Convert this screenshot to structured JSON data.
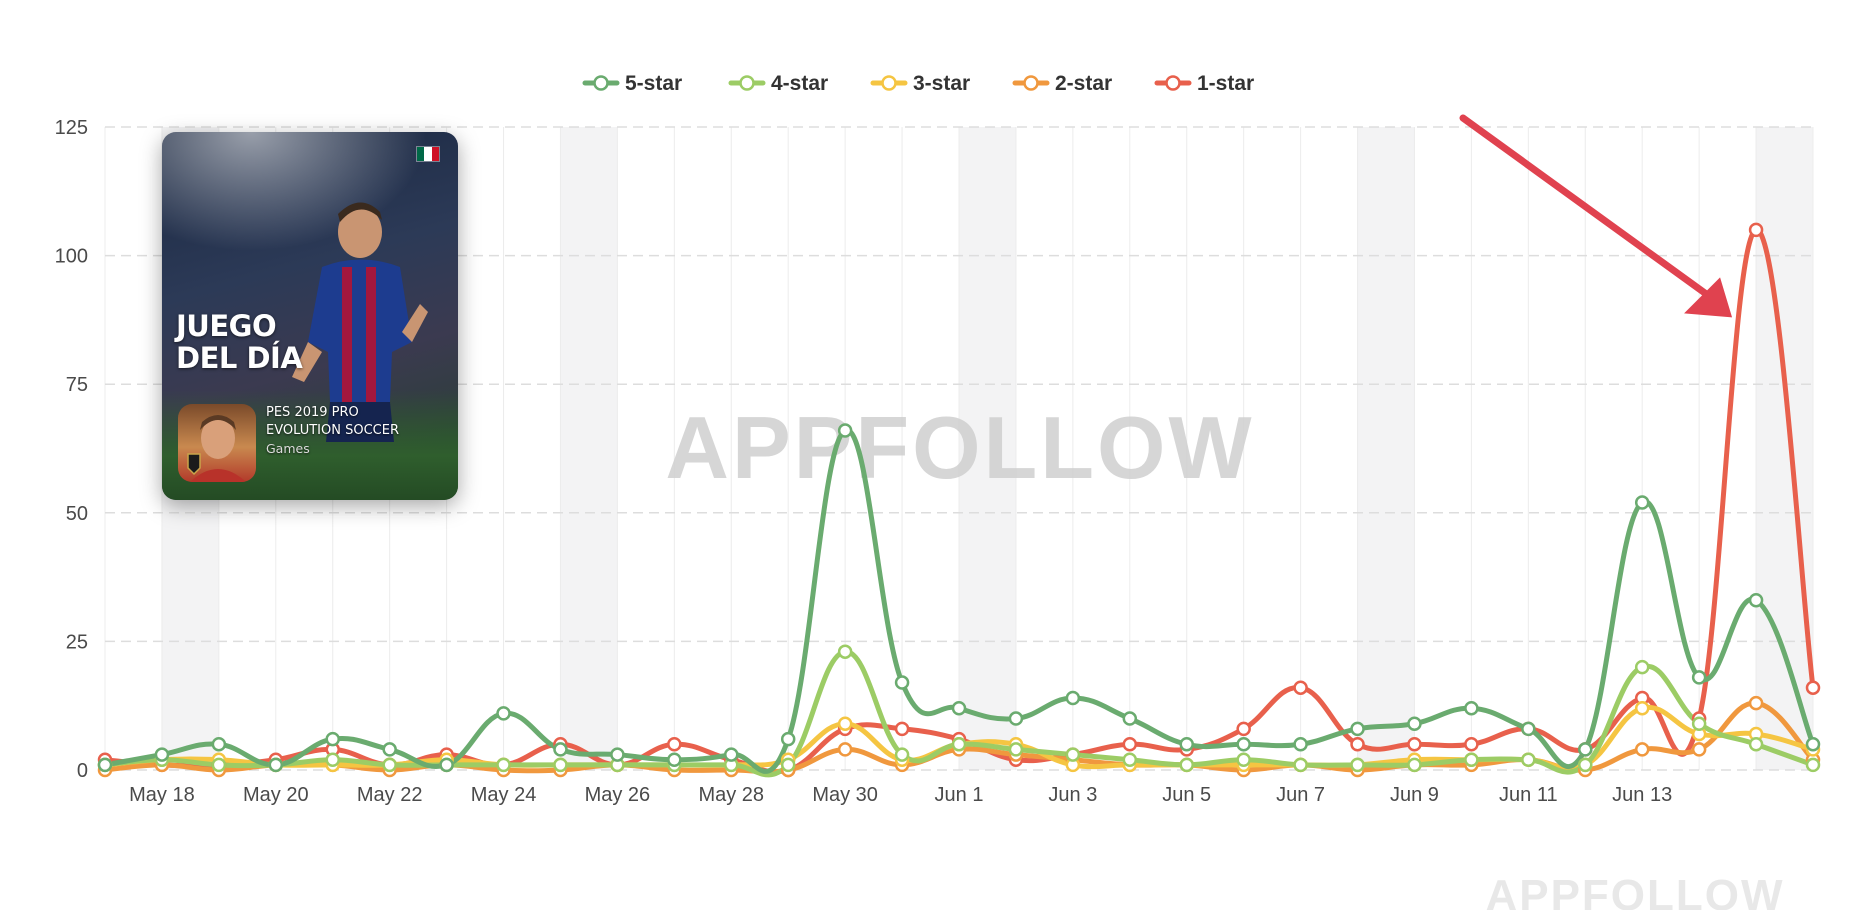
{
  "chart_data": {
    "type": "line",
    "title": "",
    "xlabel": "",
    "ylabel": "",
    "ylim": [
      0,
      125
    ],
    "yticks": [
      0,
      25,
      50,
      75,
      100,
      125
    ],
    "grid": true,
    "legend_position": "top-center",
    "x": [
      "May 17",
      "May 18",
      "May 19",
      "May 20",
      "May 21",
      "May 22",
      "May 23",
      "May 24",
      "May 25",
      "May 26",
      "May 27",
      "May 28",
      "May 29",
      "May 30",
      "May 31",
      "Jun 1",
      "Jun 2",
      "Jun 3",
      "Jun 4",
      "Jun 5",
      "Jun 6",
      "Jun 7",
      "Jun 8",
      "Jun 9",
      "Jun 10",
      "Jun 11",
      "Jun 12",
      "Jun 13",
      "Jun 14",
      "Jun 15",
      "Jun 16"
    ],
    "x_tick_labels": [
      "May 18",
      "May 20",
      "May 22",
      "May 24",
      "May 26",
      "May 28",
      "May 30",
      "Jun 1",
      "Jun 3",
      "Jun 5",
      "Jun 7",
      "Jun 9",
      "Jun 11",
      "Jun 13"
    ],
    "weekend_bands": [
      [
        "May 18",
        "May 19"
      ],
      [
        "May 25",
        "May 26"
      ],
      [
        "Jun 1",
        "Jun 2"
      ],
      [
        "Jun 8",
        "Jun 9"
      ],
      [
        "Jun 15",
        "Jun 16"
      ]
    ],
    "series": [
      {
        "name": "5-star",
        "color": "#6aab6f",
        "values": [
          1,
          3,
          5,
          1,
          6,
          4,
          1,
          11,
          4,
          3,
          2,
          3,
          6,
          66,
          17,
          12,
          10,
          14,
          10,
          5,
          5,
          5,
          8,
          9,
          12,
          8,
          4,
          52,
          18,
          33,
          5
        ]
      },
      {
        "name": "4-star",
        "color": "#9ccc65",
        "values": [
          1,
          2,
          1,
          1,
          2,
          1,
          1,
          1,
          1,
          1,
          1,
          1,
          1,
          23,
          3,
          5,
          4,
          3,
          2,
          1,
          2,
          1,
          1,
          1,
          2,
          2,
          1,
          20,
          9,
          5,
          1
        ]
      },
      {
        "name": "3-star",
        "color": "#f5c542",
        "values": [
          1,
          2,
          2,
          1,
          1,
          1,
          2,
          1,
          1,
          1,
          1,
          1,
          2,
          9,
          2,
          5,
          5,
          1,
          1,
          1,
          1,
          1,
          1,
          2,
          2,
          2,
          1,
          12,
          7,
          7,
          4
        ]
      },
      {
        "name": "2-star",
        "color": "#f0983e",
        "values": [
          0,
          1,
          0,
          1,
          1,
          0,
          1,
          0,
          0,
          1,
          0,
          0,
          0,
          4,
          1,
          4,
          3,
          2,
          1,
          1,
          0,
          1,
          0,
          1,
          1,
          2,
          0,
          4,
          4,
          13,
          2
        ]
      },
      {
        "name": "1-star",
        "color": "#e8604c",
        "values": [
          2,
          1,
          1,
          2,
          4,
          1,
          3,
          1,
          5,
          1,
          5,
          2,
          0,
          8,
          8,
          6,
          2,
          3,
          5,
          4,
          8,
          16,
          5,
          5,
          5,
          8,
          4,
          14,
          10,
          105,
          16
        ]
      }
    ]
  },
  "watermarks": {
    "center": "APPFOLLOW",
    "bottom_right": "APPFOLLOW"
  },
  "promo_card": {
    "headline_line1": "JUEGO",
    "headline_line2": "DEL DÍA",
    "app_name_line1": "PES 2019 PRO",
    "app_name_line2": "EVOLUTION SOCCER",
    "app_category": "Games",
    "flag_colors": [
      "#006847",
      "#ffffff",
      "#ce1126"
    ]
  },
  "annotation": {
    "type": "arrow",
    "color": "#e0424f",
    "points_to": {
      "x": "Jun 15",
      "series": "1-star"
    }
  }
}
